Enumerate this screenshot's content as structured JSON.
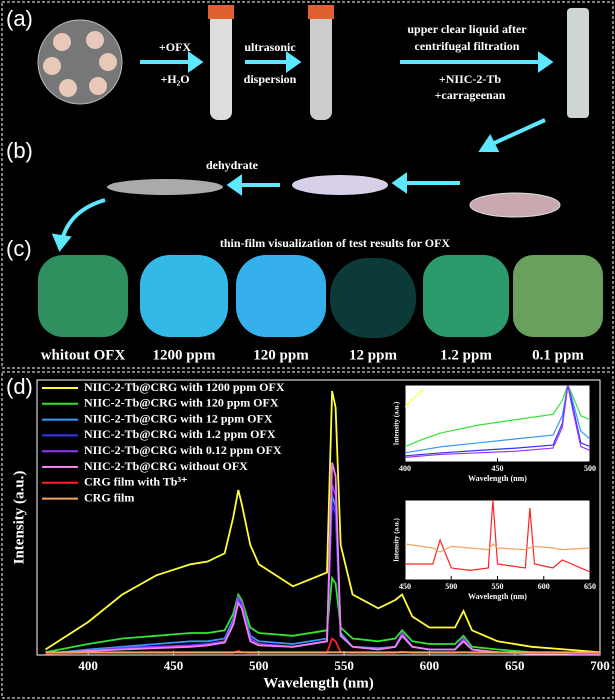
{
  "panels": {
    "a": {
      "label": "(a)",
      "step1": [
        "+OFX",
        "+H₂O"
      ],
      "step2": [
        "ultrasonic",
        "dispersion"
      ],
      "step3": [
        "upper clear liquid after",
        "centrifugal filtration"
      ],
      "step4": [
        "+NIIC-2-Tb",
        "+carrageenan"
      ]
    },
    "b": {
      "label": "(b)",
      "step": "dehydrate"
    },
    "c": {
      "label": "(c)",
      "title": "thin-film visualization of test results for OFX",
      "films": [
        "whitout OFX",
        "1200 ppm",
        "120 ppm",
        "12 ppm",
        "1.2 ppm",
        "0.1 ppm"
      ]
    }
  },
  "chart_data": [
    {
      "type": "line",
      "panel_label": "(d)",
      "xlabel": "Wavelength (nm)",
      "ylabel": "Intensity (a.u.)",
      "xlim": [
        370,
        700
      ],
      "ylim": [
        0,
        100
      ],
      "xticks": [
        400,
        450,
        500,
        550,
        600,
        650,
        700
      ],
      "x": [
        375,
        400,
        420,
        440,
        460,
        470,
        480,
        485,
        488,
        490,
        495,
        500,
        520,
        540,
        543,
        545,
        548,
        555,
        570,
        580,
        584,
        590,
        600,
        615,
        620,
        625,
        640,
        660,
        680,
        700
      ],
      "series": [
        {
          "name": "NIIC-2-Tb@CRG with 1200 ppm OFX",
          "color": "#ffff33",
          "values": [
            2,
            12,
            22,
            29,
            33,
            34,
            37,
            50,
            60,
            55,
            40,
            33,
            25,
            30,
            96,
            90,
            40,
            22,
            17,
            20,
            22,
            14,
            10,
            10,
            16,
            9,
            5,
            3,
            2,
            1
          ]
        },
        {
          "name": "NIIC-2-Tb@CRG with 120 ppm OFX",
          "color": "#33e533",
          "values": [
            1,
            4,
            6,
            7,
            8,
            8,
            9,
            15,
            22,
            20,
            10,
            8,
            7,
            9,
            28,
            26,
            10,
            6,
            5,
            6,
            9,
            5,
            4,
            4,
            7,
            3,
            2,
            1,
            1,
            0.5
          ]
        },
        {
          "name": "NIIC-2-Tb@CRG with 12 ppm OFX",
          "color": "#3399ff",
          "values": [
            0.5,
            2,
            3,
            4,
            5,
            5,
            6,
            13,
            21,
            19,
            7,
            5,
            4,
            6,
            58,
            54,
            8,
            3,
            2.5,
            3,
            7,
            3,
            2,
            2,
            6,
            2,
            1,
            0.5,
            0.5,
            0.3
          ]
        },
        {
          "name": "NIIC-2-Tb@CRG with 1.2 ppm OFX",
          "color": "#3333ff",
          "values": [
            0.5,
            1.5,
            2.5,
            3,
            3.5,
            4,
            5,
            12,
            20,
            18,
            6,
            4,
            3,
            5,
            55,
            51,
            7,
            3,
            2,
            3,
            7,
            3,
            2,
            2,
            6,
            2,
            1,
            0.5,
            0.5,
            0.3
          ]
        },
        {
          "name": "NIIC-2-Tb@CRG with 0.12 ppm OFX",
          "color": "#9933ff",
          "values": [
            0.5,
            1.5,
            2.5,
            3,
            3.5,
            4,
            5,
            12,
            21,
            19,
            6,
            4,
            3,
            5,
            62,
            58,
            7,
            3,
            2,
            3,
            8,
            3,
            2,
            2,
            6,
            2,
            1,
            0.5,
            0.5,
            0.3
          ]
        },
        {
          "name": "NIIC-2-Tb@CRG without OFX",
          "color": "#ee82ee",
          "values": [
            0.5,
            1.5,
            2,
            2.5,
            3,
            3.5,
            4.5,
            11,
            19,
            17,
            5,
            3.5,
            3,
            5,
            70,
            65,
            7,
            3,
            2,
            3,
            7,
            3,
            2,
            2,
            5,
            2,
            1,
            0.5,
            0.5,
            0.3
          ]
        },
        {
          "name": "CRG film with Tb³⁺",
          "color": "#ff2222",
          "values": [
            0.5,
            0.8,
            0.8,
            0.8,
            0.8,
            0.8,
            0.8,
            0.8,
            1.5,
            1,
            0.8,
            0.8,
            0.8,
            0.8,
            6,
            5,
            1,
            0.8,
            0.8,
            0.8,
            1.2,
            0.8,
            0.8,
            0.8,
            1,
            0.8,
            0.8,
            0.8,
            0.8,
            0.8
          ]
        },
        {
          "name": "CRG film",
          "color": "#f4a460",
          "values": [
            1,
            1,
            1,
            1,
            1,
            1,
            1,
            1,
            1,
            1,
            1,
            1,
            1,
            1,
            1,
            1,
            1,
            1,
            1,
            1,
            1,
            1,
            1,
            1,
            1,
            1,
            1,
            1,
            1,
            1
          ]
        }
      ]
    },
    {
      "type": "line",
      "xlabel": "Wavelength (nm)",
      "ylabel": "Intensity (a.u.)",
      "xlim": [
        400,
        500
      ],
      "ylim": [
        0,
        100
      ],
      "xticks": [
        400,
        450,
        500
      ],
      "x": [
        400,
        410,
        420,
        440,
        460,
        480,
        485,
        488,
        490,
        495,
        500
      ],
      "series": [
        {
          "color": "#ffff33",
          "values": [
            72,
            95,
            null,
            null,
            null,
            null,
            null,
            null,
            null,
            null,
            null
          ]
        },
        {
          "color": "#33e533",
          "values": [
            20,
            30,
            38,
            48,
            55,
            62,
            80,
            100,
            90,
            60,
            55
          ]
        },
        {
          "color": "#3399ff",
          "values": [
            12,
            16,
            20,
            25,
            30,
            35,
            60,
            100,
            85,
            40,
            30
          ]
        },
        {
          "color": "#3333ff",
          "values": [
            8,
            10,
            12,
            15,
            18,
            22,
            50,
            100,
            80,
            25,
            20
          ]
        },
        {
          "color": "#9933ff",
          "values": [
            6,
            8,
            10,
            12,
            14,
            18,
            45,
            100,
            75,
            20,
            15
          ]
        }
      ]
    },
    {
      "type": "line",
      "xlabel": "Wavelength (nm)",
      "ylabel": "Intensity (a.u.)",
      "xlim": [
        450,
        650
      ],
      "ylim": [
        0,
        100
      ],
      "xticks": [
        450,
        500,
        550,
        600,
        650
      ],
      "x": [
        450,
        480,
        488,
        500,
        520,
        540,
        545,
        550,
        580,
        585,
        590,
        610,
        620,
        650
      ],
      "series": [
        {
          "color": "#ff2222",
          "values": [
            20,
            20,
            50,
            15,
            12,
            15,
            100,
            20,
            15,
            90,
            20,
            15,
            25,
            10
          ]
        },
        {
          "color": "#f4a460",
          "values": [
            45,
            40,
            35,
            42,
            40,
            38,
            45,
            40,
            38,
            40,
            42,
            40,
            38,
            40
          ]
        }
      ]
    }
  ]
}
